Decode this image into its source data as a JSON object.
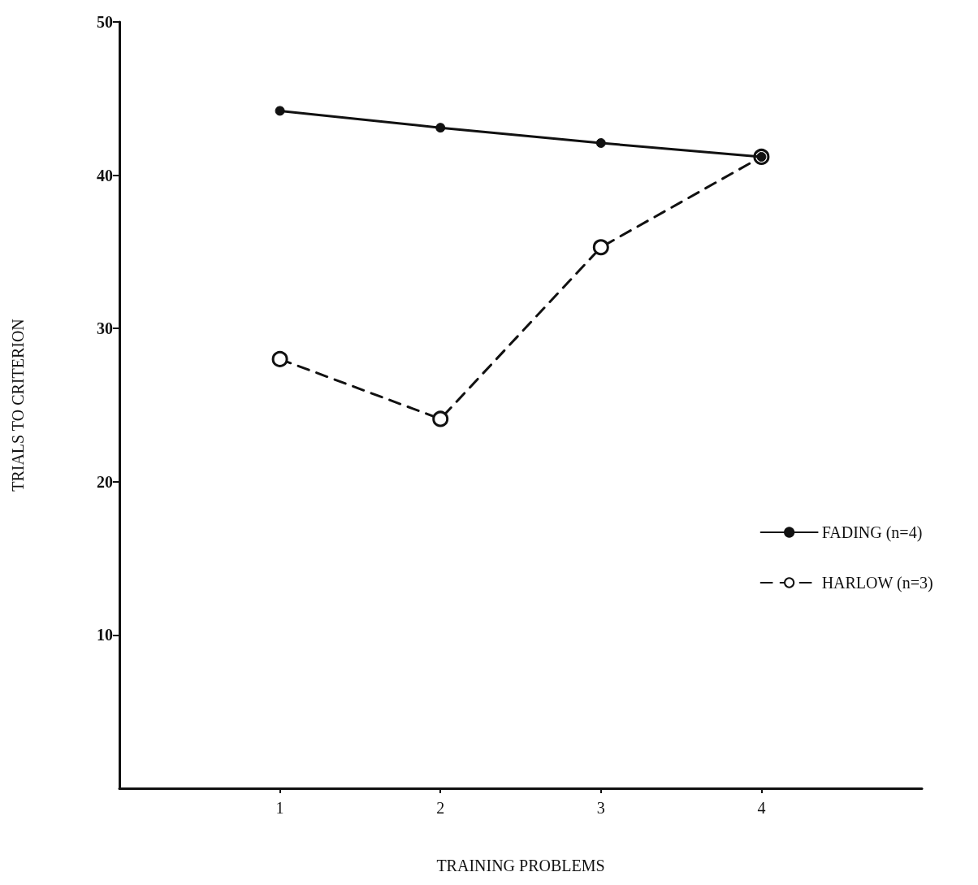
{
  "chart_data": {
    "type": "line",
    "xlabel": "TRAINING PROBLEMS",
    "ylabel": "TRIALS TO CRITERION",
    "x": [
      1,
      2,
      3,
      4
    ],
    "series": [
      {
        "name": "FADING (n=4)",
        "color": "#111111",
        "values": [
          44.2,
          43.1,
          42.1,
          41.2
        ],
        "line_style": "solid"
      },
      {
        "name": "HARLOW (n=3)",
        "color": "#111111",
        "values": [
          28.0,
          24.1,
          35.3,
          41.2
        ],
        "line_style": "dashed"
      }
    ],
    "xlim": [
      0,
      5
    ],
    "xticks": [
      1,
      2,
      3,
      4
    ],
    "ylim": [
      0,
      50
    ],
    "yticks": [
      10,
      20,
      30,
      40,
      50
    ],
    "marker": "circle",
    "grid": false,
    "legend": "right"
  }
}
